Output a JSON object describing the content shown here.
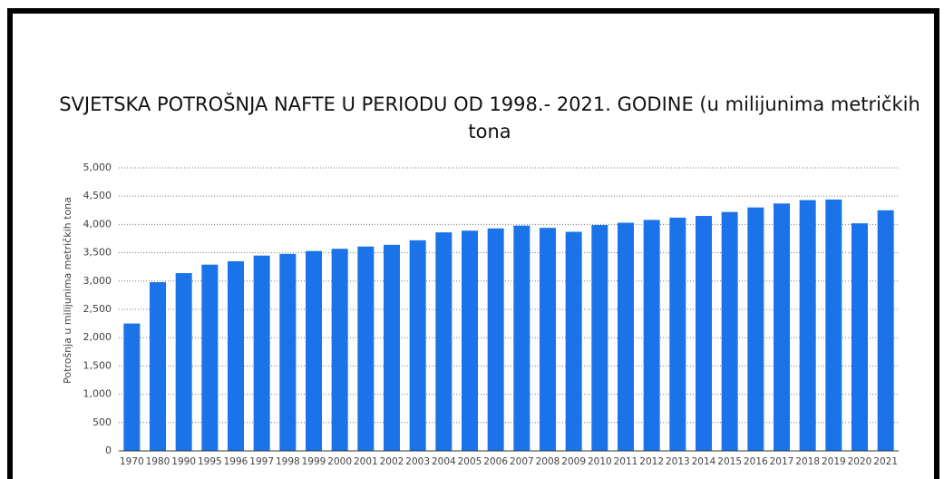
{
  "chart_data": {
    "type": "bar",
    "title_lines": [
      "SVJETSKA POTROŠNJA NAFTE U PERIODU OD 1998.- 2021. GODINE (u milijunima metričkih",
      "tona"
    ],
    "y_label": "Potrošnja u milijunima metričkih tona",
    "categories": [
      "1970",
      "1980",
      "1990",
      "1995",
      "1996",
      "1997",
      "1998",
      "1999",
      "2000",
      "2001",
      "2002",
      "2003",
      "2004",
      "2005",
      "2006",
      "2007",
      "2008",
      "2009",
      "2010",
      "2011",
      "2012",
      "2013",
      "2014",
      "2015",
      "2016",
      "2017",
      "2018",
      "2019",
      "2020",
      "2021"
    ],
    "values": [
      2250,
      2980,
      3140,
      3290,
      3350,
      3450,
      3480,
      3530,
      3570,
      3610,
      3640,
      3720,
      3860,
      3890,
      3930,
      3980,
      3940,
      3870,
      3990,
      4030,
      4080,
      4120,
      4150,
      4220,
      4300,
      4370,
      4430,
      4440,
      4020,
      4250
    ],
    "color": "#1a73e8",
    "ylim": [
      0,
      5000
    ],
    "yticks": [
      0,
      500,
      {
        "value": 1000,
        "label": "1,000"
      },
      {
        "value": 1500,
        "label": "1,500"
      },
      {
        "value": 2000,
        "label": "2,000"
      },
      {
        "value": 2500,
        "label": "2,500"
      },
      {
        "value": 3000,
        "label": "3,000"
      },
      {
        "value": 3500,
        "label": "3,500"
      },
      {
        "value": 4000,
        "label": "4,000"
      },
      {
        "value": 4500,
        "label": "4,500"
      },
      {
        "value": 5000,
        "label": "5,000"
      }
    ],
    "grid": true
  }
}
